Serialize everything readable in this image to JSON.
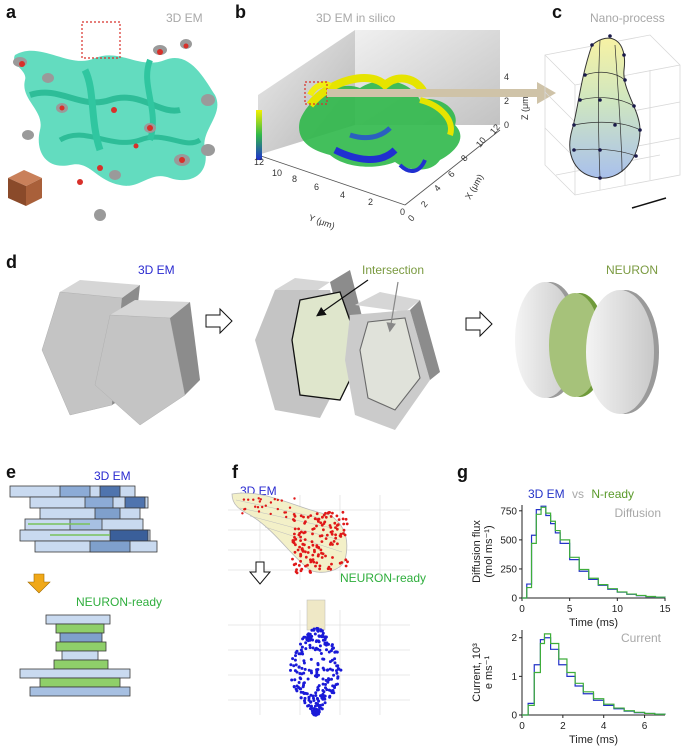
{
  "panels": {
    "a": {
      "label": "a",
      "title": "3D EM"
    },
    "b": {
      "label": "b",
      "title": "3D EM in silico",
      "y_axis_label": "Y (μm)",
      "x_axis_label": "X (μm)",
      "z_axis_label": "Z (μm)",
      "y_ticks": [
        "12",
        "10",
        "8",
        "6",
        "4",
        "2",
        "0"
      ],
      "x_ticks": [
        "0",
        "2",
        "4",
        "6",
        "8",
        "10",
        "12"
      ],
      "z_ticks": [
        "0",
        "2",
        "4"
      ]
    },
    "c": {
      "label": "c",
      "title": "Nano-process"
    },
    "d": {
      "label": "d",
      "em_label": "3D EM",
      "intersection_label": "Intersection",
      "neuron_label": "NEURON"
    },
    "e": {
      "label": "e",
      "em_label": "3D EM",
      "ready_label": "NEURON-ready"
    },
    "f": {
      "label": "f",
      "em_label": "3D EM",
      "ready_label": "NEURON-ready"
    },
    "g": {
      "label": "g",
      "legend": {
        "em": "3D EM",
        "vs": "vs",
        "nready": "N-ready"
      },
      "colors": {
        "em": "#2433c8",
        "nready": "#3fae3a"
      }
    }
  },
  "chart_data": [
    {
      "type": "line",
      "title": "Diffusion",
      "xlabel": "Time (ms)",
      "ylabel_line1": "Diffusion flux",
      "ylabel_line2": "(mol ms⁻¹)",
      "xlim": [
        0,
        15
      ],
      "ylim": [
        0,
        800
      ],
      "xticks": [
        0,
        5,
        10,
        15
      ],
      "yticks": [
        0,
        250,
        500,
        750
      ],
      "series": [
        {
          "name": "3D EM",
          "x": [
            0,
            0.5,
            1,
            1.5,
            2,
            2.5,
            3,
            3.5,
            4,
            5,
            6,
            7,
            8,
            9,
            10,
            11,
            12,
            13,
            14,
            15
          ],
          "y": [
            0,
            120,
            540,
            760,
            790,
            710,
            640,
            560,
            470,
            330,
            230,
            160,
            110,
            75,
            50,
            32,
            20,
            12,
            6,
            3
          ]
        },
        {
          "name": "N-ready",
          "x": [
            0,
            0.5,
            1,
            1.5,
            2,
            2.5,
            3,
            3.5,
            4,
            5,
            6,
            7,
            8,
            9,
            10,
            11,
            12,
            13,
            14,
            15
          ],
          "y": [
            0,
            90,
            470,
            720,
            780,
            730,
            660,
            580,
            500,
            350,
            245,
            170,
            115,
            80,
            52,
            34,
            22,
            13,
            7,
            3
          ]
        }
      ]
    },
    {
      "type": "line",
      "title": "Current",
      "xlabel": "Time (ms)",
      "ylabel_line1": "Current, 10³",
      "ylabel_line2": "e ms⁻¹",
      "xlim": [
        0,
        7
      ],
      "ylim": [
        0,
        2.2
      ],
      "xticks": [
        0,
        2,
        4,
        6
      ],
      "yticks": [
        0,
        1,
        2
      ],
      "series": [
        {
          "name": "3D EM",
          "x": [
            0,
            0.3,
            0.6,
            0.9,
            1.1,
            1.4,
            1.8,
            2.2,
            2.6,
            3,
            3.5,
            4,
            4.5,
            5,
            5.5,
            6,
            6.5,
            7
          ],
          "y": [
            0,
            0.3,
            1.3,
            1.95,
            2.0,
            1.7,
            1.3,
            1.0,
            0.75,
            0.55,
            0.38,
            0.25,
            0.16,
            0.1,
            0.06,
            0.04,
            0.02,
            0.01
          ]
        },
        {
          "name": "N-ready",
          "x": [
            0,
            0.3,
            0.6,
            0.9,
            1.1,
            1.4,
            1.8,
            2.2,
            2.6,
            3,
            3.5,
            4,
            4.5,
            5,
            5.5,
            6,
            6.5,
            7
          ],
          "y": [
            0,
            0.25,
            1.1,
            1.85,
            2.1,
            1.85,
            1.45,
            1.1,
            0.82,
            0.6,
            0.42,
            0.28,
            0.18,
            0.11,
            0.07,
            0.04,
            0.02,
            0.01
          ]
        }
      ]
    }
  ]
}
